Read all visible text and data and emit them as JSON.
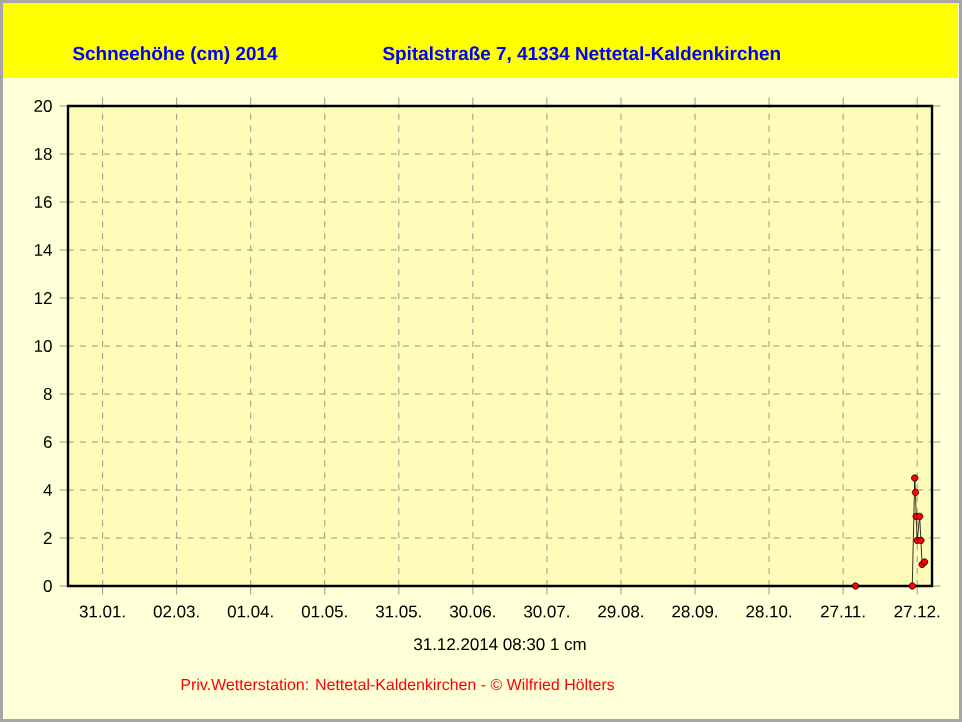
{
  "chart_data": {
    "type": "line",
    "title": "Schneehöhe (cm)  2014",
    "subtitle": "Spitalstraße 7, 41334 Nettetal-Kaldenkirchen",
    "x": [
      "2014-12-02",
      "2014-12-25",
      "2014-12-26",
      "2014-12-26T07:00",
      "2014-12-26T14:00",
      "2014-12-27",
      "2014-12-28",
      "2014-12-28T12:00",
      "2014-12-29",
      "2014-12-30"
    ],
    "series": [
      {
        "color": "#ff0000",
        "values": [
          0,
          0,
          4.5,
          3.9,
          2.9,
          1.9,
          2.9,
          1.9,
          0.9,
          1
        ]
      }
    ],
    "xlim": [
      "2014-01-17",
      "2015-01-02"
    ],
    "xticks": [
      {
        "value": "2014-01-31",
        "label": "31.01."
      },
      {
        "value": "2014-03-02",
        "label": "02.03."
      },
      {
        "value": "2014-04-01",
        "label": "01.04."
      },
      {
        "value": "2014-05-01",
        "label": "01.05."
      },
      {
        "value": "2014-05-31",
        "label": "31.05."
      },
      {
        "value": "2014-06-30",
        "label": "30.06."
      },
      {
        "value": "2014-07-30",
        "label": "30.07."
      },
      {
        "value": "2014-08-29",
        "label": "29.08."
      },
      {
        "value": "2014-09-28",
        "label": "28.09."
      },
      {
        "value": "2014-10-28",
        "label": "28.10."
      },
      {
        "value": "2014-11-27",
        "label": "27.11."
      },
      {
        "value": "2014-12-27",
        "label": "27.12."
      }
    ],
    "ylim": [
      0,
      20
    ],
    "yticks": [
      0,
      2,
      4,
      6,
      8,
      10,
      12,
      14,
      16,
      18,
      20
    ],
    "grid": true,
    "marker": "circle",
    "line_style": "solid",
    "annotations": [
      "31.12.2014  08:30   1 cm",
      "Priv.Wetterstation: Nettetal-Kaldenkirchen   -   © Wilfried Hölters"
    ]
  }
}
